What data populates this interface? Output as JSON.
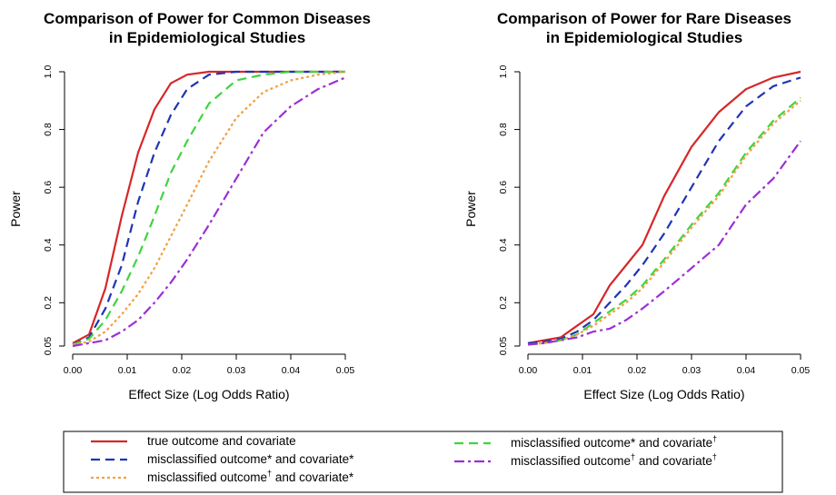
{
  "chart_data": [
    {
      "type": "line",
      "title": [
        "Comparison of Power for Common Diseases",
        "in Epidemiological Studies"
      ],
      "xlabel": "Effect Size (Log Odds Ratio)",
      "ylabel": "Power",
      "xlim": [
        0,
        0.05
      ],
      "ylim": [
        0.05,
        1.0
      ],
      "xticks": [
        0.0,
        0.01,
        0.02,
        0.03,
        0.04,
        0.05
      ],
      "xtick_labels": [
        "0.00",
        "0.01",
        "0.02",
        "0.03",
        "0.04",
        "0.05"
      ],
      "yticks": [
        0.05,
        0.2,
        0.4,
        0.6,
        0.8,
        1.0
      ],
      "ytick_labels": [
        "0.05",
        "0.2",
        "0.4",
        "0.6",
        "0.8",
        "1.0"
      ],
      "x": [
        0,
        0.003,
        0.006,
        0.009,
        0.012,
        0.015,
        0.018,
        0.021,
        0.025,
        0.03,
        0.035,
        0.04,
        0.045,
        0.05
      ],
      "series": [
        {
          "ref": "s1",
          "values": [
            0.06,
            0.09,
            0.25,
            0.5,
            0.72,
            0.87,
            0.96,
            0.99,
            1.0,
            1.0,
            1.0,
            1.0,
            1.0,
            1.0
          ]
        },
        {
          "ref": "s2",
          "values": [
            0.055,
            0.08,
            0.18,
            0.33,
            0.55,
            0.72,
            0.85,
            0.94,
            0.99,
            1.0,
            1.0,
            1.0,
            1.0,
            1.0
          ]
        },
        {
          "ref": "s3",
          "values": [
            0.055,
            0.075,
            0.14,
            0.24,
            0.36,
            0.5,
            0.65,
            0.76,
            0.89,
            0.97,
            0.99,
            1.0,
            1.0,
            1.0
          ]
        },
        {
          "ref": "s4",
          "values": [
            0.055,
            0.065,
            0.1,
            0.16,
            0.23,
            0.32,
            0.43,
            0.54,
            0.69,
            0.84,
            0.93,
            0.97,
            0.99,
            1.0
          ]
        },
        {
          "ref": "s5",
          "values": [
            0.05,
            0.06,
            0.07,
            0.1,
            0.14,
            0.2,
            0.27,
            0.35,
            0.47,
            0.63,
            0.79,
            0.88,
            0.94,
            0.98
          ]
        }
      ]
    },
    {
      "type": "line",
      "title": [
        "Comparison of Power for Rare Diseases",
        "in Epidemiological Studies"
      ],
      "xlabel": "Effect Size (Log Odds Ratio)",
      "ylabel": "Power",
      "xlim": [
        0,
        0.05
      ],
      "ylim": [
        0.05,
        1.0
      ],
      "xticks": [
        0.0,
        0.01,
        0.02,
        0.03,
        0.04,
        0.05
      ],
      "xtick_labels": [
        "0.00",
        "0.01",
        "0.02",
        "0.03",
        "0.04",
        "0.05"
      ],
      "yticks": [
        0.05,
        0.2,
        0.4,
        0.6,
        0.8,
        1.0
      ],
      "ytick_labels": [
        "0.05",
        "0.2",
        "0.4",
        "0.6",
        "0.8",
        "1.0"
      ],
      "x": [
        0,
        0.003,
        0.006,
        0.009,
        0.012,
        0.015,
        0.018,
        0.021,
        0.025,
        0.03,
        0.035,
        0.04,
        0.045,
        0.05
      ],
      "series": [
        {
          "ref": "s1",
          "values": [
            0.06,
            0.07,
            0.08,
            0.12,
            0.16,
            0.26,
            0.33,
            0.4,
            0.57,
            0.74,
            0.86,
            0.94,
            0.98,
            1.0
          ]
        },
        {
          "ref": "s2",
          "values": [
            0.06,
            0.065,
            0.075,
            0.1,
            0.14,
            0.2,
            0.26,
            0.33,
            0.44,
            0.6,
            0.76,
            0.88,
            0.95,
            0.98
          ]
        },
        {
          "ref": "s3",
          "values": [
            0.055,
            0.06,
            0.07,
            0.09,
            0.13,
            0.17,
            0.21,
            0.26,
            0.35,
            0.47,
            0.58,
            0.72,
            0.83,
            0.91
          ]
        },
        {
          "ref": "s4",
          "values": [
            0.055,
            0.06,
            0.07,
            0.09,
            0.12,
            0.16,
            0.2,
            0.25,
            0.34,
            0.46,
            0.57,
            0.71,
            0.82,
            0.9
          ]
        },
        {
          "ref": "s5",
          "values": [
            0.055,
            0.06,
            0.07,
            0.08,
            0.1,
            0.11,
            0.14,
            0.18,
            0.24,
            0.32,
            0.4,
            0.54,
            0.63,
            0.76
          ]
        }
      ]
    }
  ],
  "series_styles": {
    "s1": {
      "color": "#d62728",
      "dash": ""
    },
    "s2": {
      "color": "#1f35b4",
      "dash": "10,6"
    },
    "s3": {
      "color": "#3fd43f",
      "dash": "10,6"
    },
    "s4": {
      "color": "#f0a045",
      "dash": "3,3"
    },
    "s5": {
      "color": "#9b2fd6",
      "dash": "11,4,3,4"
    }
  },
  "legend": {
    "items": [
      {
        "ref": "s1",
        "parts": [
          {
            "t": "true outcome and covariate",
            "sup": false
          }
        ]
      },
      {
        "ref": "s2",
        "parts": [
          {
            "t": "misclassified outcome* and covariate*",
            "sup": false
          }
        ]
      },
      {
        "ref": "s4",
        "parts": [
          {
            "t": "misclassified outcome",
            "sup": false
          },
          {
            "t": "†",
            "sup": true
          },
          {
            "t": " and covariate*",
            "sup": false
          }
        ]
      },
      {
        "ref": "s3",
        "parts": [
          {
            "t": "misclassified outcome* and covariate",
            "sup": false
          },
          {
            "t": "†",
            "sup": true
          }
        ]
      },
      {
        "ref": "s5",
        "parts": [
          {
            "t": "misclassified outcome",
            "sup": false
          },
          {
            "t": "†",
            "sup": true
          },
          {
            "t": " and covariate",
            "sup": false
          },
          {
            "t": "†",
            "sup": true
          }
        ]
      }
    ]
  }
}
